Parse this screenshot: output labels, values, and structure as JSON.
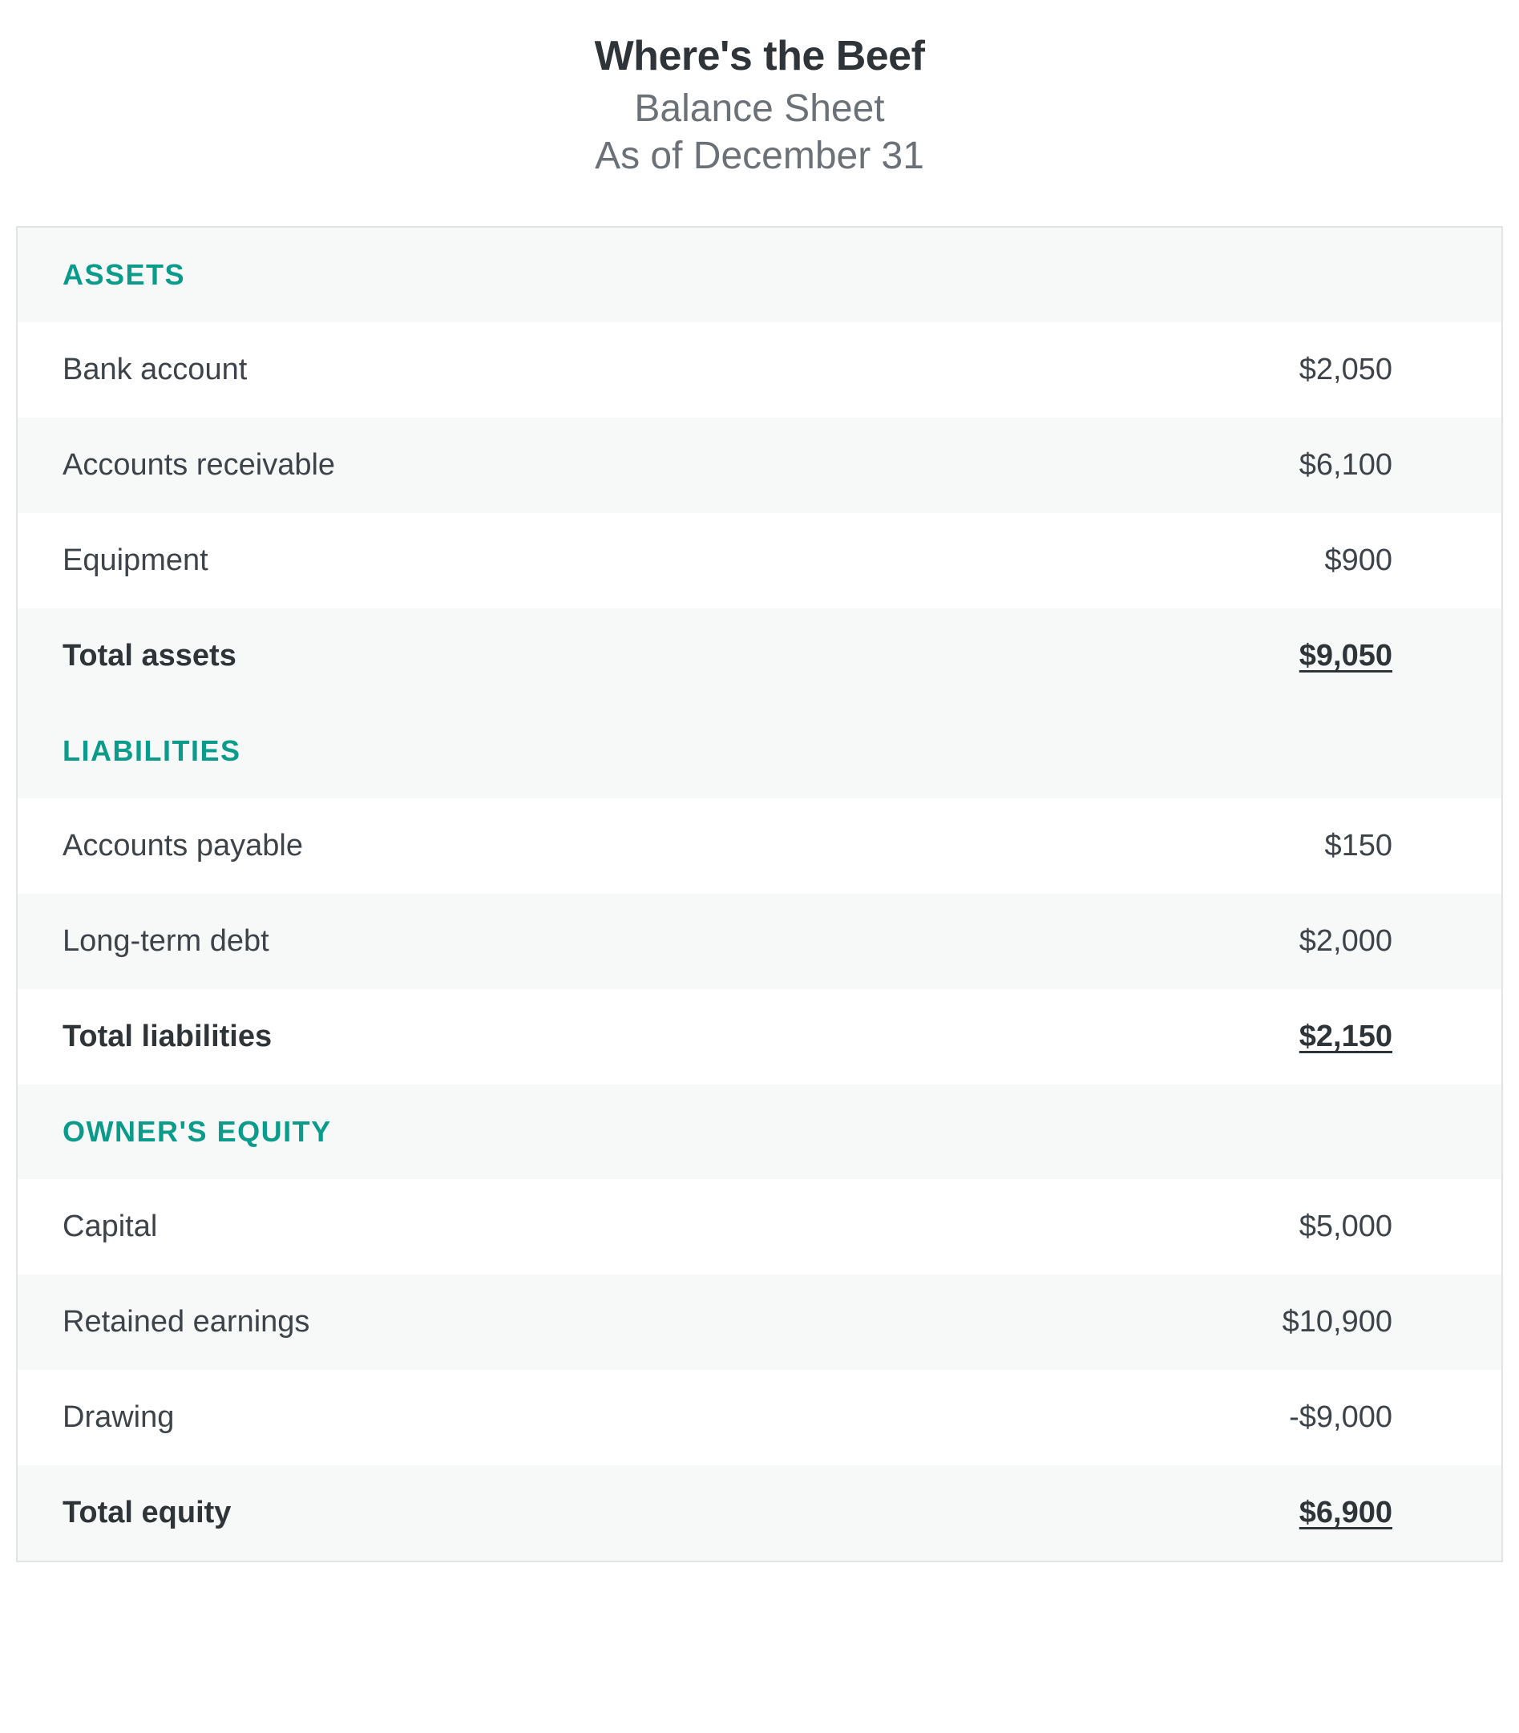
{
  "header": {
    "company_name": "Where's the Beef",
    "report_title": "Balance Sheet",
    "report_date": "As of December 31"
  },
  "colors": {
    "section_title": "#0b9b8a",
    "text_primary": "#2f3438",
    "text_secondary": "#6b7177",
    "text_body": "#3d4348",
    "border": "#e1e3e5",
    "row_alt": "#f7f8f8",
    "background": "#ffffff"
  },
  "sections": {
    "assets": {
      "title": "ASSETS",
      "rows": [
        {
          "label": "Bank account",
          "value": "$2,050"
        },
        {
          "label": "Accounts receivable",
          "value": "$6,100"
        },
        {
          "label": "Equipment",
          "value": "$900"
        }
      ],
      "total": {
        "label": "Total assets",
        "value": "$9,050"
      }
    },
    "liabilities": {
      "title": "LIABILITIES",
      "rows": [
        {
          "label": "Accounts payable",
          "value": "$150"
        },
        {
          "label": "Long-term debt",
          "value": "$2,000"
        }
      ],
      "total": {
        "label": "Total liabilities",
        "value": "$2,150"
      }
    },
    "equity": {
      "title": "OWNER'S EQUITY",
      "rows": [
        {
          "label": "Capital",
          "value": "$5,000"
        },
        {
          "label": "Retained earnings",
          "value": "$10,900"
        },
        {
          "label": "Drawing",
          "value": "-$9,000"
        }
      ],
      "total": {
        "label": "Total equity",
        "value": "$6,900"
      }
    }
  }
}
